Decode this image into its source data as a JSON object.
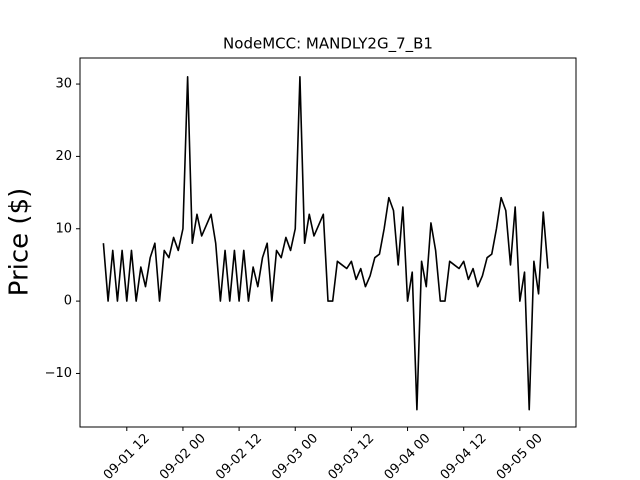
{
  "chart_data": {
    "type": "line",
    "title": "NodeMCC: MANDLY2G_7_B1",
    "y_label": "Price ($)",
    "x": [
      "09-01 07",
      "09-01 08",
      "09-01 09",
      "09-01 10",
      "09-01 11",
      "09-01 12",
      "09-01 13",
      "09-01 14",
      "09-01 15",
      "09-01 16",
      "09-01 17",
      "09-01 18",
      "09-01 19",
      "09-01 20",
      "09-01 21",
      "09-01 22",
      "09-01 23",
      "09-02 00",
      "09-02 01",
      "09-02 02",
      "09-02 03",
      "09-02 04",
      "09-02 05",
      "09-02 06",
      "09-02 07",
      "09-02 08",
      "09-02 09",
      "09-02 10",
      "09-02 11",
      "09-02 12",
      "09-02 13",
      "09-02 14",
      "09-02 15",
      "09-02 16",
      "09-02 17",
      "09-02 18",
      "09-02 19",
      "09-02 20",
      "09-02 21",
      "09-02 22",
      "09-02 23",
      "09-03 00",
      "09-03 01",
      "09-03 02",
      "09-03 03",
      "09-03 04",
      "09-03 05",
      "09-03 06",
      "09-03 07",
      "09-03 08",
      "09-03 09",
      "09-03 10",
      "09-03 11",
      "09-03 12",
      "09-03 13",
      "09-03 14",
      "09-03 15",
      "09-03 16",
      "09-03 17",
      "09-03 18",
      "09-03 19",
      "09-03 20",
      "09-03 21",
      "09-03 22",
      "09-03 23",
      "09-04 00",
      "09-04 01",
      "09-04 02",
      "09-04 03",
      "09-04 04",
      "09-04 05",
      "09-04 06",
      "09-04 07",
      "09-04 08",
      "09-04 09",
      "09-04 10",
      "09-04 11",
      "09-04 12",
      "09-04 13",
      "09-04 14",
      "09-04 15",
      "09-04 16",
      "09-04 17",
      "09-04 18",
      "09-04 19",
      "09-04 20",
      "09-04 21",
      "09-04 22",
      "09-04 23",
      "09-05 00",
      "09-05 01",
      "09-05 02",
      "09-05 03",
      "09-05 04",
      "09-05 05",
      "09-05 06"
    ],
    "series": [
      {
        "name": "Price",
        "color": "#000000",
        "values": [
          8,
          0,
          7,
          0,
          7,
          0,
          7,
          0,
          4.7,
          2,
          6,
          8,
          0,
          7,
          6,
          8.8,
          7,
          10,
          31,
          8,
          12,
          9,
          10.5,
          12,
          8,
          0,
          7,
          0,
          7,
          0,
          7,
          0,
          4.7,
          2,
          6,
          8,
          0,
          7,
          6,
          8.8,
          7,
          10,
          31,
          8,
          12,
          9,
          10.5,
          12,
          0,
          0,
          5.5,
          5,
          4.5,
          5.5,
          3,
          4.5,
          2,
          3.5,
          6,
          6.5,
          10,
          14.3,
          12.5,
          5,
          13,
          0,
          4,
          -15,
          5.5,
          2,
          10.8,
          7,
          0,
          0,
          5.5,
          5,
          4.5,
          5.5,
          3,
          4.5,
          2,
          3.5,
          6,
          6.5,
          10,
          14.3,
          12.5,
          5,
          13,
          0,
          4,
          -15,
          5.5,
          1,
          12.3,
          4.5
        ]
      }
    ],
    "xlim": [
      "09-01 02",
      "09-05 12"
    ],
    "xticks": [
      "09-01 12",
      "09-02 00",
      "09-02 12",
      "09-03 00",
      "09-03 12",
      "09-04 00",
      "09-04 12",
      "09-05 00"
    ],
    "ylim": [
      -17.4,
      33.6
    ],
    "yticks": [
      {
        "value": -10,
        "label": "−10"
      },
      0,
      10,
      20,
      30
    ],
    "grid": false
  }
}
